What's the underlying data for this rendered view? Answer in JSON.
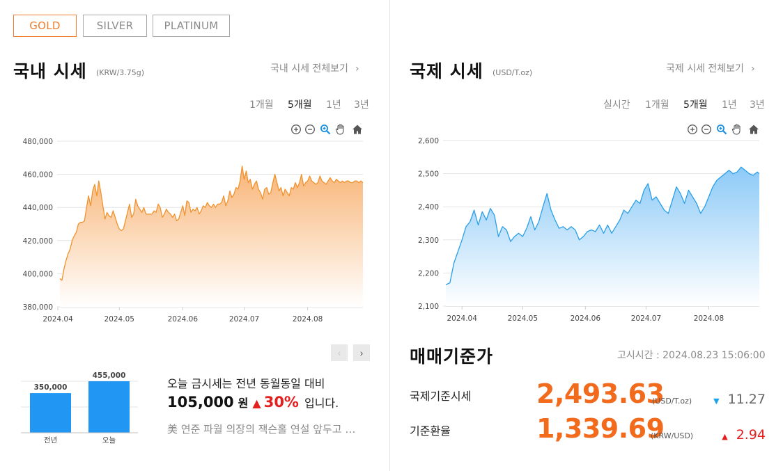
{
  "metal_tabs": [
    {
      "label": "GOLD",
      "active": true
    },
    {
      "label": "SILVER",
      "active": false
    },
    {
      "label": "PLATINUM",
      "active": false
    }
  ],
  "domestic": {
    "title": "국내 시세",
    "unit": "(KRW/3.75g)",
    "view_all": "국내 시세 전체보기",
    "periods": [
      {
        "label": "1개월",
        "active": false
      },
      {
        "label": "5개월",
        "active": true
      },
      {
        "label": "1년",
        "active": false
      },
      {
        "label": "3년",
        "active": false
      }
    ]
  },
  "international": {
    "title": "국제 시세",
    "unit": "(USD/T.oz)",
    "view_all": "국제 시세 전체보기",
    "periods": [
      {
        "label": "실시간",
        "active": false
      },
      {
        "label": "1개월",
        "active": false
      },
      {
        "label": "5개월",
        "active": true
      },
      {
        "label": "1년",
        "active": false
      },
      {
        "label": "3년",
        "active": false
      }
    ]
  },
  "chart_tools": [
    "zoom-in-icon",
    "zoom-out-icon",
    "magnify-icon",
    "pan-hand-icon",
    "home-icon"
  ],
  "comparison": {
    "line1": "오늘 금시세는 전년 동월동일 대비",
    "diff": "105,000",
    "won": "원",
    "pct": "30%",
    "suffix": "입니다.",
    "news": "美 연준 파월 의장의 잭슨홀 연설 앞두고 …"
  },
  "trade": {
    "title": "매매기준가",
    "notice_time": "고시시간 : 2024.08.23 15:06:00",
    "rows": [
      {
        "label": "국제기준시세",
        "value": "2,493.63",
        "unit": "(USD/T.oz)",
        "change": "11.27",
        "direction": "down"
      },
      {
        "label": "기준환율",
        "value": "1,339.69",
        "unit": "(KRW/USD)",
        "change": "2.94",
        "direction": "up"
      }
    ]
  },
  "colors": {
    "accent": "#f07c2c",
    "domestic_line": "#f0922e",
    "international_line": "#2a9fe8",
    "bar": "#2196f3",
    "up": "#e51e1e",
    "down": "#1aa3e8"
  },
  "chart_data": [
    {
      "type": "area",
      "name": "domestic-gold",
      "x_tick_labels": [
        "2024.04",
        "2024.05",
        "2024.06",
        "2024.07",
        "2024.08"
      ],
      "x_tick_days": [
        0,
        30,
        61,
        91,
        122
      ],
      "y_tick_labels": [
        "380,000",
        "400,000",
        "420,000",
        "440,000",
        "460,000",
        "480,000"
      ],
      "ylim": [
        380000,
        480000
      ],
      "xlim_days": [
        1,
        149
      ],
      "grid": true,
      "x_days": [
        1,
        2,
        3,
        4,
        5,
        6,
        7,
        8,
        9,
        10,
        11,
        12,
        13,
        14,
        15,
        16,
        17,
        18,
        19,
        20,
        21,
        22,
        23,
        24,
        25,
        26,
        27,
        28,
        29,
        30,
        31,
        32,
        33,
        34,
        35,
        36,
        37,
        38,
        39,
        40,
        41,
        42,
        43,
        44,
        45,
        46,
        47,
        48,
        49,
        50,
        51,
        52,
        53,
        54,
        55,
        56,
        57,
        58,
        59,
        60,
        61,
        62,
        63,
        64,
        65,
        66,
        67,
        68,
        69,
        70,
        71,
        72,
        73,
        74,
        75,
        76,
        77,
        78,
        79,
        80,
        81,
        82,
        83,
        84,
        85,
        86,
        87,
        88,
        89,
        90,
        91,
        92,
        93,
        94,
        95,
        96,
        97,
        98,
        99,
        100,
        101,
        102,
        103,
        104,
        105,
        106,
        107,
        108,
        109,
        110,
        111,
        112,
        113,
        114,
        115,
        116,
        117,
        118,
        119,
        120,
        121,
        122,
        123,
        124,
        125,
        126,
        127,
        128,
        129,
        130,
        131,
        132,
        133,
        134,
        135,
        136,
        137,
        138,
        139,
        140,
        141,
        142,
        143,
        144,
        145,
        146,
        147,
        148,
        149
      ],
      "values": [
        397000,
        396000,
        403000,
        408000,
        412000,
        415000,
        420000,
        423000,
        425000,
        430000,
        431000,
        431000,
        432000,
        440000,
        447000,
        441000,
        450000,
        454000,
        447000,
        456000,
        449000,
        441000,
        433000,
        437000,
        435000,
        434000,
        438000,
        434000,
        430000,
        427000,
        426000,
        427000,
        432000,
        437000,
        442000,
        434000,
        436000,
        445000,
        441000,
        439000,
        437000,
        440000,
        436000,
        436000,
        436000,
        436000,
        438000,
        437000,
        442000,
        440000,
        434000,
        436000,
        439000,
        437000,
        436000,
        434000,
        436000,
        432000,
        433000,
        437000,
        441000,
        435000,
        444000,
        443000,
        437000,
        439000,
        438000,
        440000,
        436000,
        438000,
        441000,
        440000,
        443000,
        441000,
        440000,
        442000,
        440000,
        442000,
        442000,
        443000,
        447000,
        441000,
        444000,
        450000,
        446000,
        448000,
        452000,
        451000,
        456000,
        465000,
        457000,
        462000,
        455000,
        457000,
        451000,
        454000,
        456000,
        451000,
        449000,
        445000,
        451000,
        452000,
        448000,
        449000,
        455000,
        460000,
        455000,
        450000,
        452000,
        447000,
        451000,
        449000,
        447000,
        452000,
        451000,
        455000,
        452000,
        455000,
        460000,
        453000,
        455000,
        456000,
        459000,
        456000,
        455000,
        454000,
        455000,
        459000,
        456000,
        455000,
        454000,
        456000,
        458000,
        456000,
        455000,
        457000,
        456000,
        455000,
        456000,
        455000,
        456000,
        456000,
        455000,
        455000,
        456000,
        456000,
        455000,
        456000,
        455000
      ],
      "series": [
        {
          "name": "",
          "color": "#f0922e"
        }
      ]
    },
    {
      "type": "area",
      "name": "international-gold",
      "x_tick_labels": [
        "2024.04",
        "2024.05",
        "2024.06",
        "2024.07",
        "2024.08"
      ],
      "x_tick_days": [
        0,
        30,
        61,
        91,
        122
      ],
      "y_tick_labels": [
        "2,100",
        "2,200",
        "2,300",
        "2,400",
        "2,500",
        "2,600"
      ],
      "ylim": [
        2100,
        2600
      ],
      "xlim_days": [
        -8,
        147
      ],
      "grid": true,
      "x_days": [
        -8,
        -6,
        -4,
        -2,
        0,
        2,
        4,
        6,
        8,
        10,
        12,
        14,
        16,
        18,
        20,
        22,
        24,
        26,
        28,
        30,
        32,
        34,
        36,
        38,
        40,
        42,
        44,
        46,
        48,
        50,
        52,
        54,
        56,
        58,
        60,
        62,
        64,
        66,
        68,
        70,
        72,
        74,
        76,
        78,
        80,
        82,
        84,
        86,
        88,
        90,
        92,
        94,
        96,
        98,
        100,
        102,
        104,
        106,
        108,
        110,
        112,
        114,
        116,
        118,
        120,
        122,
        124,
        126,
        128,
        130,
        132,
        134,
        136,
        138,
        140,
        142,
        144,
        146,
        147
      ],
      "values": [
        2165,
        2170,
        2230,
        2265,
        2300,
        2340,
        2355,
        2390,
        2345,
        2385,
        2360,
        2395,
        2375,
        2310,
        2340,
        2330,
        2295,
        2310,
        2320,
        2310,
        2335,
        2370,
        2330,
        2355,
        2400,
        2440,
        2390,
        2360,
        2335,
        2340,
        2330,
        2340,
        2330,
        2300,
        2310,
        2325,
        2330,
        2325,
        2345,
        2320,
        2345,
        2320,
        2340,
        2360,
        2390,
        2380,
        2400,
        2420,
        2410,
        2450,
        2470,
        2420,
        2430,
        2410,
        2390,
        2380,
        2420,
        2460,
        2440,
        2410,
        2450,
        2430,
        2410,
        2380,
        2400,
        2430,
        2460,
        2480,
        2490,
        2500,
        2510,
        2500,
        2505,
        2520,
        2510,
        2500,
        2495,
        2505,
        2500
      ],
      "series": [
        {
          "name": "",
          "color": "#2a9fe8"
        }
      ]
    },
    {
      "type": "bar",
      "name": "year-compare",
      "categories": [
        "전년",
        "오늘"
      ],
      "values": [
        350000,
        455000
      ],
      "value_labels": [
        "350,000",
        "455,000"
      ],
      "series": [
        {
          "name": "",
          "color": "#2196f3"
        }
      ]
    }
  ]
}
